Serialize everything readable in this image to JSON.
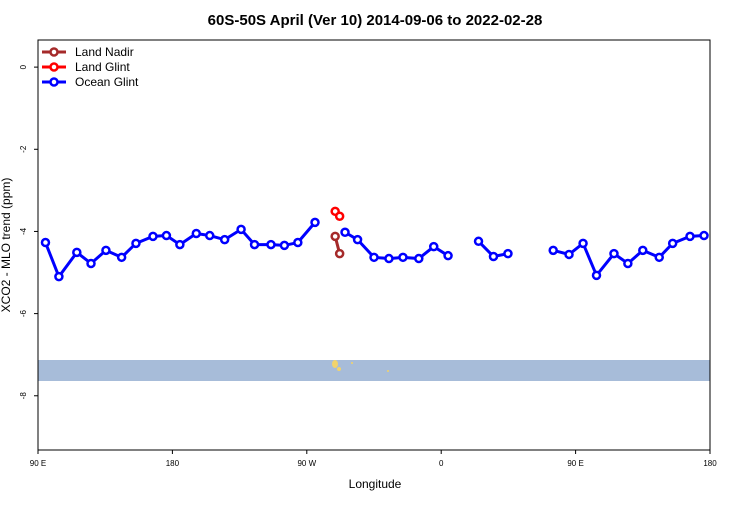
{
  "chart_data": {
    "type": "line",
    "title": "60S-50S April (Ver 10)   2014-09-06 to 2022-02-28",
    "x_label": "Longitude",
    "y_label": "XCO2 - MLO trend (ppm)",
    "xlim": [
      90,
      540
    ],
    "xticks": [
      {
        "value": 90,
        "label": "90 E"
      },
      {
        "value": 180,
        "label": "180"
      },
      {
        "value": 270,
        "label": "90 W"
      },
      {
        "value": 360,
        "label": "0"
      },
      {
        "value": 450,
        "label": "90 E"
      },
      {
        "value": 540,
        "label": "180"
      }
    ],
    "ylim": [
      -9.32,
      0.66
    ],
    "yticks": [
      0,
      -2,
      -4,
      -6,
      -8
    ],
    "legend": "top-left",
    "series": [
      {
        "name": "Land Nadir",
        "color": "#a52a2a",
        "x": [
          289,
          292
        ],
        "values": [
          -4.12,
          -4.54
        ]
      },
      {
        "name": "Land Glint",
        "color": "#ff0000",
        "x": [
          289,
          292
        ],
        "values": [
          -3.51,
          -3.63
        ]
      },
      {
        "name": "Ocean Glint",
        "color": "#0000ff",
        "x": [
          95,
          104,
          116,
          125.5,
          135.5,
          146,
          155.6,
          167,
          176,
          185,
          196,
          205,
          215,
          226,
          235,
          246,
          255,
          264,
          275.5,
          285,
          295.6,
          304,
          315,
          325,
          334.4,
          345,
          355,
          364.6,
          375,
          385,
          395,
          404.7,
          420,
          435,
          445.6,
          455,
          464,
          475.7,
          485,
          495,
          506,
          515,
          526.6,
          536
        ],
        "values": [
          -4.27,
          -5.1,
          -4.51,
          -4.78,
          -4.46,
          -4.63,
          -4.29,
          -4.12,
          -4.1,
          -4.32,
          -4.05,
          -4.1,
          -4.2,
          -3.95,
          -4.32,
          -4.32,
          -4.34,
          -4.27,
          -3.78,
          null,
          -4.02,
          -4.2,
          -4.63,
          -4.66,
          -4.63,
          -4.66,
          -4.37,
          -4.59,
          null,
          -4.24,
          -4.61,
          -4.54,
          null,
          -4.46,
          -4.56,
          -4.29,
          -5.07,
          -4.54,
          -4.78,
          -4.46,
          -4.63,
          -4.29,
          -4.12,
          -4.1
        ]
      }
    ]
  }
}
